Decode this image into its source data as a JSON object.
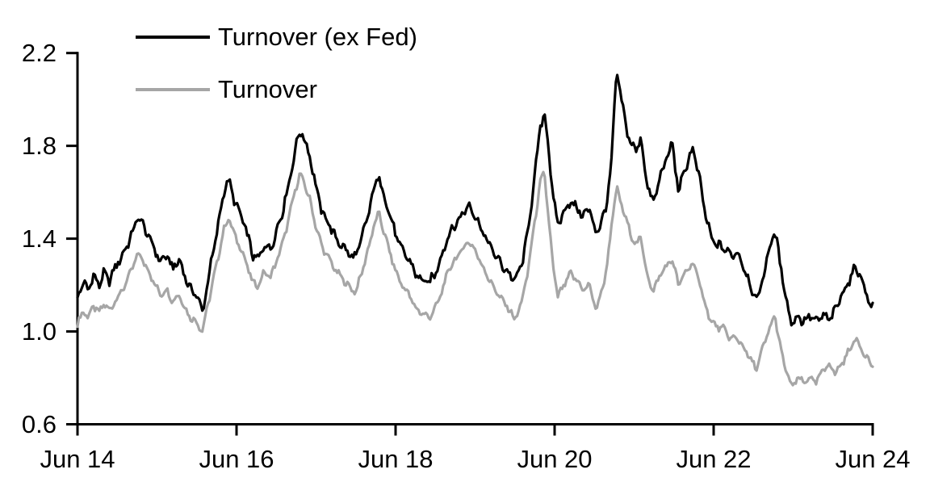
{
  "chart_data": {
    "type": "line",
    "title": "",
    "grid": false,
    "legend_position": "top-left",
    "x_axis": {
      "label": "",
      "min": 0,
      "max": 10,
      "tick_values": [
        0,
        2,
        4,
        6,
        8,
        10
      ],
      "tick_labels": [
        "Jun 14",
        "Jun 16",
        "Jun 18",
        "Jun 20",
        "Jun 22",
        "Jun 24"
      ]
    },
    "y_axis": {
      "label": "",
      "min": 0.6,
      "max": 2.2,
      "tick_values": [
        2.2,
        1.8,
        1.4,
        1.0,
        0.6
      ],
      "tick_labels": [
        "2.2",
        "1.8",
        "1.4",
        "1.0",
        "0.6"
      ]
    },
    "axis_color": "#000000",
    "series": [
      {
        "name": "Turnover",
        "color": "#a6a6a6",
        "line_width": 3.2,
        "noise_amplitude": 0.009,
        "points": [
          [
            0,
            1.03
          ],
          [
            0.07,
            1.09
          ],
          [
            0.13,
            1.06
          ],
          [
            0.2,
            1.11
          ],
          [
            0.27,
            1.08
          ],
          [
            0.33,
            1.12
          ],
          [
            0.4,
            1.09
          ],
          [
            0.47,
            1.13
          ],
          [
            0.53,
            1.16
          ],
          [
            0.6,
            1.2
          ],
          [
            0.68,
            1.27
          ],
          [
            0.78,
            1.34
          ],
          [
            0.84,
            1.29
          ],
          [
            0.9,
            1.26
          ],
          [
            0.97,
            1.2
          ],
          [
            1.05,
            1.16
          ],
          [
            1.12,
            1.18
          ],
          [
            1.2,
            1.13
          ],
          [
            1.28,
            1.16
          ],
          [
            1.35,
            1.1
          ],
          [
            1.42,
            1.06
          ],
          [
            1.5,
            1.04
          ],
          [
            1.57,
            1.0
          ],
          [
            1.63,
            1.1
          ],
          [
            1.7,
            1.21
          ],
          [
            1.78,
            1.34
          ],
          [
            1.85,
            1.45
          ],
          [
            1.9,
            1.49
          ],
          [
            1.97,
            1.42
          ],
          [
            2.05,
            1.36
          ],
          [
            2.12,
            1.3
          ],
          [
            2.2,
            1.21
          ],
          [
            2.28,
            1.2
          ],
          [
            2.35,
            1.26
          ],
          [
            2.42,
            1.23
          ],
          [
            2.5,
            1.3
          ],
          [
            2.58,
            1.38
          ],
          [
            2.66,
            1.49
          ],
          [
            2.73,
            1.6
          ],
          [
            2.8,
            1.68
          ],
          [
            2.86,
            1.63
          ],
          [
            2.92,
            1.57
          ],
          [
            3.0,
            1.45
          ],
          [
            3.08,
            1.36
          ],
          [
            3.17,
            1.31
          ],
          [
            3.25,
            1.26
          ],
          [
            3.33,
            1.23
          ],
          [
            3.42,
            1.19
          ],
          [
            3.5,
            1.17
          ],
          [
            3.58,
            1.26
          ],
          [
            3.66,
            1.36
          ],
          [
            3.73,
            1.46
          ],
          [
            3.79,
            1.51
          ],
          [
            3.86,
            1.42
          ],
          [
            3.93,
            1.34
          ],
          [
            4.0,
            1.26
          ],
          [
            4.08,
            1.2
          ],
          [
            4.17,
            1.16
          ],
          [
            4.25,
            1.1
          ],
          [
            4.33,
            1.08
          ],
          [
            4.42,
            1.06
          ],
          [
            4.5,
            1.1
          ],
          [
            4.58,
            1.17
          ],
          [
            4.66,
            1.26
          ],
          [
            4.75,
            1.31
          ],
          [
            4.83,
            1.35
          ],
          [
            4.92,
            1.39
          ],
          [
            5.0,
            1.35
          ],
          [
            5.08,
            1.29
          ],
          [
            5.17,
            1.23
          ],
          [
            5.25,
            1.18
          ],
          [
            5.33,
            1.14
          ],
          [
            5.42,
            1.1
          ],
          [
            5.5,
            1.05
          ],
          [
            5.58,
            1.12
          ],
          [
            5.66,
            1.25
          ],
          [
            5.74,
            1.45
          ],
          [
            5.82,
            1.64
          ],
          [
            5.87,
            1.69
          ],
          [
            5.92,
            1.5
          ],
          [
            5.98,
            1.28
          ],
          [
            6.04,
            1.15
          ],
          [
            6.12,
            1.2
          ],
          [
            6.2,
            1.25
          ],
          [
            6.28,
            1.22
          ],
          [
            6.36,
            1.18
          ],
          [
            6.44,
            1.2
          ],
          [
            6.52,
            1.09
          ],
          [
            6.58,
            1.16
          ],
          [
            6.65,
            1.26
          ],
          [
            6.72,
            1.47
          ],
          [
            6.78,
            1.62
          ],
          [
            6.83,
            1.56
          ],
          [
            6.9,
            1.48
          ],
          [
            6.97,
            1.41
          ],
          [
            7.03,
            1.37
          ],
          [
            7.08,
            1.41
          ],
          [
            7.16,
            1.25
          ],
          [
            7.24,
            1.17
          ],
          [
            7.32,
            1.24
          ],
          [
            7.4,
            1.28
          ],
          [
            7.48,
            1.31
          ],
          [
            7.56,
            1.2
          ],
          [
            7.64,
            1.25
          ],
          [
            7.74,
            1.3
          ],
          [
            7.82,
            1.21
          ],
          [
            7.9,
            1.11
          ],
          [
            7.97,
            1.04
          ],
          [
            8.05,
            1.02
          ],
          [
            8.13,
            1.01
          ],
          [
            8.21,
            0.97
          ],
          [
            8.3,
            0.97
          ],
          [
            8.38,
            0.93
          ],
          [
            8.46,
            0.88
          ],
          [
            8.54,
            0.84
          ],
          [
            8.62,
            0.93
          ],
          [
            8.7,
            1.01
          ],
          [
            8.77,
            1.07
          ],
          [
            8.85,
            0.91
          ],
          [
            8.92,
            0.82
          ],
          [
            8.99,
            0.76
          ],
          [
            9.06,
            0.8
          ],
          [
            9.13,
            0.78
          ],
          [
            9.21,
            0.8
          ],
          [
            9.29,
            0.78
          ],
          [
            9.37,
            0.83
          ],
          [
            9.45,
            0.86
          ],
          [
            9.53,
            0.82
          ],
          [
            9.61,
            0.86
          ],
          [
            9.69,
            0.91
          ],
          [
            9.79,
            0.97
          ],
          [
            9.87,
            0.92
          ],
          [
            9.94,
            0.88
          ],
          [
            10,
            0.85
          ]
        ]
      },
      {
        "name": "Turnover (ex Fed)",
        "color": "#000000",
        "line_width": 3.2,
        "noise_amplitude": 0.013,
        "points": [
          [
            0,
            1.15
          ],
          [
            0.07,
            1.21
          ],
          [
            0.13,
            1.18
          ],
          [
            0.2,
            1.24
          ],
          [
            0.27,
            1.2
          ],
          [
            0.33,
            1.25
          ],
          [
            0.4,
            1.22
          ],
          [
            0.47,
            1.27
          ],
          [
            0.53,
            1.31
          ],
          [
            0.6,
            1.35
          ],
          [
            0.68,
            1.42
          ],
          [
            0.78,
            1.5
          ],
          [
            0.84,
            1.44
          ],
          [
            0.9,
            1.41
          ],
          [
            0.97,
            1.35
          ],
          [
            1.05,
            1.3
          ],
          [
            1.12,
            1.33
          ],
          [
            1.2,
            1.27
          ],
          [
            1.28,
            1.31
          ],
          [
            1.35,
            1.24
          ],
          [
            1.42,
            1.18
          ],
          [
            1.5,
            1.16
          ],
          [
            1.57,
            1.08
          ],
          [
            1.63,
            1.2
          ],
          [
            1.7,
            1.33
          ],
          [
            1.78,
            1.48
          ],
          [
            1.85,
            1.62
          ],
          [
            1.9,
            1.65
          ],
          [
            1.97,
            1.57
          ],
          [
            2.05,
            1.5
          ],
          [
            2.12,
            1.44
          ],
          [
            2.2,
            1.33
          ],
          [
            2.28,
            1.31
          ],
          [
            2.35,
            1.38
          ],
          [
            2.42,
            1.35
          ],
          [
            2.5,
            1.43
          ],
          [
            2.58,
            1.52
          ],
          [
            2.66,
            1.64
          ],
          [
            2.73,
            1.77
          ],
          [
            2.8,
            1.87
          ],
          [
            2.86,
            1.82
          ],
          [
            2.92,
            1.76
          ],
          [
            3.0,
            1.62
          ],
          [
            3.08,
            1.51
          ],
          [
            3.17,
            1.46
          ],
          [
            3.25,
            1.4
          ],
          [
            3.33,
            1.37
          ],
          [
            3.42,
            1.33
          ],
          [
            3.5,
            1.32
          ],
          [
            3.58,
            1.41
          ],
          [
            3.66,
            1.51
          ],
          [
            3.73,
            1.62
          ],
          [
            3.79,
            1.67
          ],
          [
            3.86,
            1.58
          ],
          [
            3.93,
            1.5
          ],
          [
            4.0,
            1.42
          ],
          [
            4.08,
            1.35
          ],
          [
            4.17,
            1.31
          ],
          [
            4.25,
            1.25
          ],
          [
            4.33,
            1.22
          ],
          [
            4.42,
            1.21
          ],
          [
            4.5,
            1.25
          ],
          [
            4.58,
            1.33
          ],
          [
            4.66,
            1.41
          ],
          [
            4.75,
            1.46
          ],
          [
            4.83,
            1.5
          ],
          [
            4.92,
            1.55
          ],
          [
            5.0,
            1.5
          ],
          [
            5.08,
            1.44
          ],
          [
            5.17,
            1.38
          ],
          [
            5.25,
            1.33
          ],
          [
            5.33,
            1.29
          ],
          [
            5.42,
            1.25
          ],
          [
            5.5,
            1.22
          ],
          [
            5.58,
            1.28
          ],
          [
            5.66,
            1.42
          ],
          [
            5.74,
            1.64
          ],
          [
            5.82,
            1.88
          ],
          [
            5.87,
            1.95
          ],
          [
            5.92,
            1.8
          ],
          [
            5.98,
            1.58
          ],
          [
            6.04,
            1.46
          ],
          [
            6.12,
            1.52
          ],
          [
            6.2,
            1.56
          ],
          [
            6.28,
            1.53
          ],
          [
            6.36,
            1.5
          ],
          [
            6.44,
            1.53
          ],
          [
            6.52,
            1.42
          ],
          [
            6.58,
            1.47
          ],
          [
            6.65,
            1.53
          ],
          [
            6.72,
            1.76
          ],
          [
            6.78,
            2.13
          ],
          [
            6.83,
            2.02
          ],
          [
            6.9,
            1.88
          ],
          [
            6.97,
            1.8
          ],
          [
            7.03,
            1.78
          ],
          [
            7.08,
            1.84
          ],
          [
            7.16,
            1.64
          ],
          [
            7.24,
            1.55
          ],
          [
            7.32,
            1.66
          ],
          [
            7.4,
            1.74
          ],
          [
            7.48,
            1.81
          ],
          [
            7.56,
            1.6
          ],
          [
            7.64,
            1.7
          ],
          [
            7.74,
            1.79
          ],
          [
            7.82,
            1.66
          ],
          [
            7.9,
            1.5
          ],
          [
            7.97,
            1.4
          ],
          [
            8.05,
            1.37
          ],
          [
            8.13,
            1.36
          ],
          [
            8.21,
            1.33
          ],
          [
            8.3,
            1.34
          ],
          [
            8.38,
            1.28
          ],
          [
            8.46,
            1.2
          ],
          [
            8.54,
            1.13
          ],
          [
            8.62,
            1.23
          ],
          [
            8.7,
            1.36
          ],
          [
            8.77,
            1.43
          ],
          [
            8.85,
            1.27
          ],
          [
            8.92,
            1.12
          ],
          [
            8.99,
            1.03
          ],
          [
            9.06,
            1.07
          ],
          [
            9.13,
            1.04
          ],
          [
            9.21,
            1.07
          ],
          [
            9.29,
            1.04
          ],
          [
            9.37,
            1.07
          ],
          [
            9.45,
            1.05
          ],
          [
            9.53,
            1.09
          ],
          [
            9.61,
            1.16
          ],
          [
            9.69,
            1.21
          ],
          [
            9.79,
            1.28
          ],
          [
            9.87,
            1.22
          ],
          [
            9.94,
            1.14
          ],
          [
            10,
            1.1
          ]
        ]
      }
    ]
  }
}
